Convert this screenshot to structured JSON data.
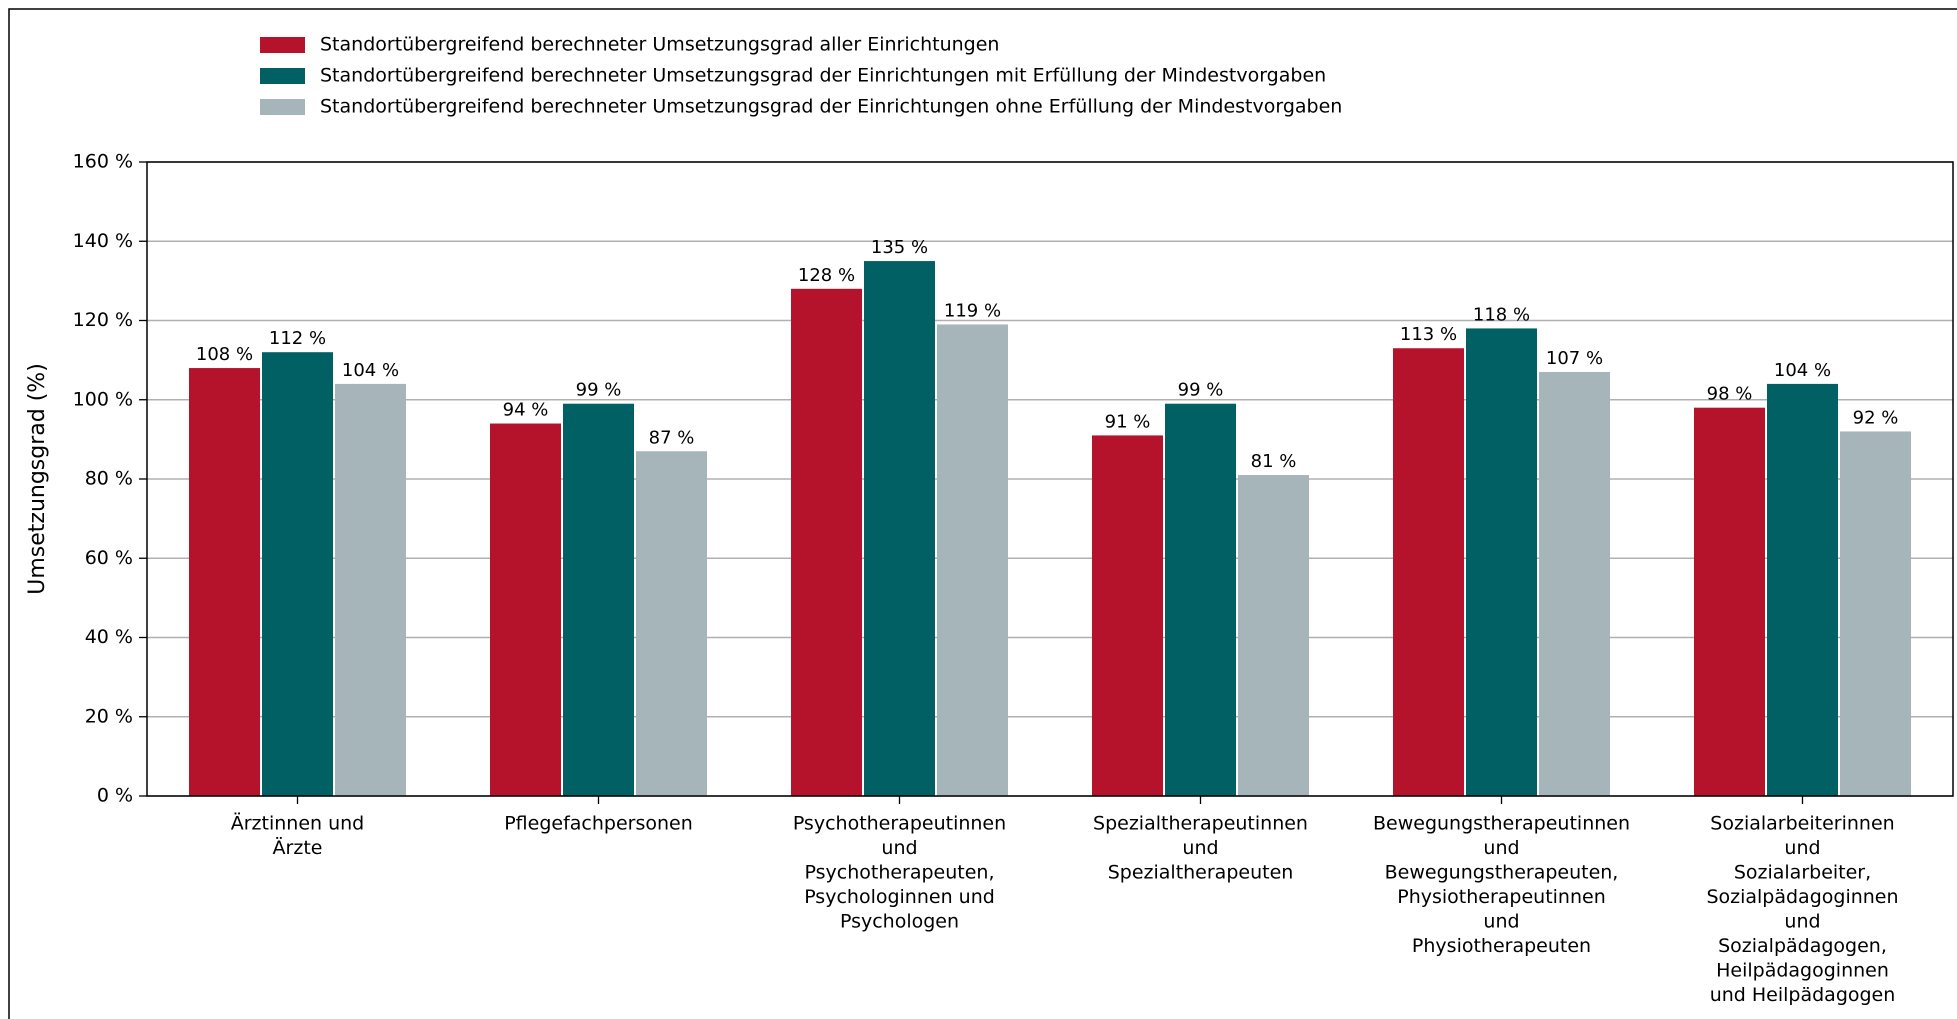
{
  "chart_data": {
    "type": "bar",
    "ylabel": "Umsetzungsgrad (%)",
    "categories": [
      [
        "Ärztinnen und",
        "Ärzte"
      ],
      [
        "Pflegefachpersonen"
      ],
      [
        "Psychotherapeutinnen",
        "und",
        "Psychotherapeuten,",
        "Psychologinnen und",
        "Psychologen"
      ],
      [
        "Spezialtherapeutinnen",
        "und",
        "Spezialtherapeuten"
      ],
      [
        "Bewegungstherapeutinnen",
        "und",
        "Bewegungstherapeuten,",
        "Physiotherapeutinnen",
        "und",
        "Physiotherapeuten"
      ],
      [
        "Sozialarbeiterinnen",
        "und",
        "Sozialarbeiter,",
        "Sozialpädagoginnen",
        "und",
        "Sozialpädagogen,",
        "Heilpädagoginnen",
        "und Heilpädagogen"
      ]
    ],
    "series": [
      {
        "name": "Standortübergreifend berechneter Umsetzungsgrad aller Einrichtungen",
        "color": "#b5132b",
        "values": [
          108,
          94,
          128,
          91,
          113,
          98
        ],
        "value_labels": [
          "108 %",
          "94 %",
          "128 %",
          "91 %",
          "113 %",
          "98 %"
        ]
      },
      {
        "name": "Standortübergreifend berechneter Umsetzungsgrad der Einrichtungen mit Erfüllung der Mindestvorgaben",
        "color": "#006064",
        "values": [
          112,
          99,
          135,
          99,
          118,
          104
        ],
        "value_labels": [
          "112 %",
          "99 %",
          "135 %",
          "99 %",
          "118 %",
          "104 %"
        ]
      },
      {
        "name": "Standortübergreifend berechneter Umsetzungsgrad der Einrichtungen ohne Erfüllung der Mindestvorgaben",
        "color": "#a5b5b9",
        "values": [
          104,
          87,
          119,
          81,
          107,
          92
        ],
        "value_labels": [
          "104 %",
          "87 %",
          "119 %",
          "81 %",
          "107 %",
          "92 %"
        ]
      }
    ],
    "ylim": [
      0,
      160
    ],
    "yticks": [
      {
        "value": 0,
        "label": "0 %"
      },
      {
        "value": 20,
        "label": "20 %"
      },
      {
        "value": 40,
        "label": "40 %"
      },
      {
        "value": 60,
        "label": "60 %"
      },
      {
        "value": 80,
        "label": "80 %"
      },
      {
        "value": 100,
        "label": "100 %"
      },
      {
        "value": 120,
        "label": "120 %"
      },
      {
        "value": 140,
        "label": "140 %"
      },
      {
        "value": 160,
        "label": "160 %"
      }
    ],
    "grid": true,
    "legend": "top"
  }
}
